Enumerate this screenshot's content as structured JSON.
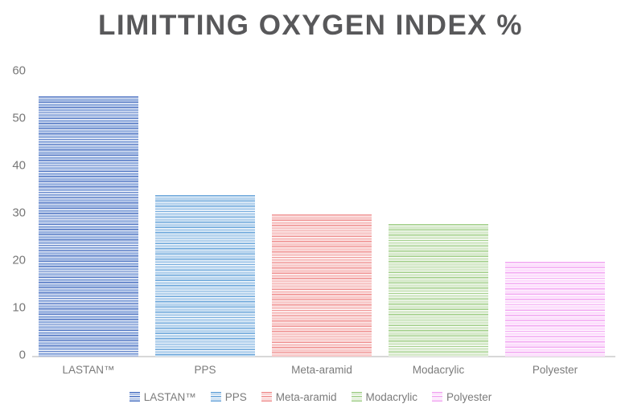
{
  "chart_data": {
    "type": "bar",
    "title": "LIMITTING OXYGEN INDEX %",
    "categories": [
      "LASTAN™",
      "PPS",
      "Meta-aramid",
      "Modacrylic",
      "Polyester"
    ],
    "values": [
      55,
      34,
      30,
      28,
      20
    ],
    "xlabel": "",
    "ylabel": "",
    "ylim": [
      0,
      60
    ],
    "yticks": [
      0,
      10,
      20,
      30,
      40,
      50,
      60
    ],
    "grid": false,
    "legend_position": "bottom",
    "legend": [
      "LASTAN™",
      "PPS",
      "Meta-aramid",
      "Modacrylic",
      "Polyester"
    ],
    "series_colors": [
      {
        "light": "#9db5e1",
        "dark": "#4b72c2"
      },
      {
        "light": "#b9d5ee",
        "dark": "#66a3d9"
      },
      {
        "light": "#f8caca",
        "dark": "#ef8e8e"
      },
      {
        "light": "#d8eacd",
        "dark": "#9fce86"
      },
      {
        "light": "#fcdffc",
        "dark": "#f2a4f2"
      }
    ],
    "bar_fill_pattern": "horizontal-stripes"
  },
  "colors": {
    "title_text": "#58585a",
    "axis_text": "#777777",
    "category_text": "#7b7b7b",
    "legend_text": "#7b7b7b",
    "baseline": "#d8d8d8",
    "background": "#ffffff"
  }
}
